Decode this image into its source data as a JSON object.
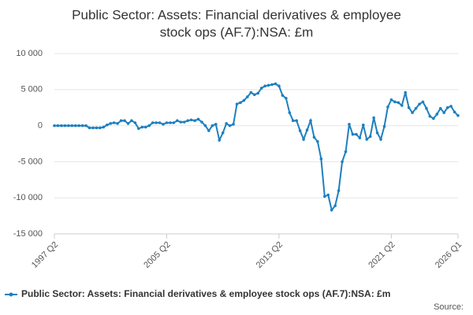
{
  "chart_data": {
    "type": "line",
    "title": [
      "Public Sector: Assets: Financial derivatives & employee",
      "stock ops (AF.7):NSA: £m"
    ],
    "categories": [
      "1997 Q2",
      null,
      null,
      null,
      null,
      null,
      null,
      null,
      null,
      null,
      null,
      null,
      null,
      null,
      null,
      null,
      null,
      null,
      null,
      null,
      null,
      null,
      null,
      null,
      null,
      null,
      null,
      null,
      null,
      null,
      null,
      null,
      "2005 Q2",
      null,
      null,
      null,
      null,
      null,
      null,
      null,
      null,
      null,
      null,
      null,
      null,
      null,
      null,
      null,
      null,
      null,
      null,
      null,
      null,
      null,
      null,
      null,
      null,
      null,
      null,
      null,
      null,
      null,
      null,
      null,
      "2013 Q2",
      null,
      null,
      null,
      null,
      null,
      null,
      null,
      null,
      null,
      null,
      null,
      null,
      null,
      null,
      null,
      null,
      null,
      null,
      null,
      null,
      null,
      null,
      null,
      null,
      null,
      null,
      null,
      null,
      null,
      null,
      null,
      "2021 Q2",
      null,
      null,
      null,
      null,
      null,
      null,
      null,
      null,
      null,
      null,
      null,
      null,
      null,
      null,
      null,
      null,
      null,
      null,
      "2026 Q1"
    ],
    "series": [
      {
        "name": "Public Sector: Assets: Financial derivatives & employee stock ops (AF.7):NSA: £m",
        "color": "#1f7fbf",
        "values": [
          0,
          0,
          0,
          0,
          0,
          0,
          0,
          0,
          0,
          0,
          -300,
          -300,
          -300,
          -300,
          -200,
          100,
          300,
          400,
          300,
          700,
          700,
          300,
          700,
          400,
          -400,
          -200,
          -200,
          0,
          400,
          400,
          400,
          200,
          400,
          400,
          400,
          700,
          500,
          500,
          700,
          800,
          700,
          900,
          500,
          0,
          -700,
          0,
          200,
          -2000,
          -1000,
          300,
          0,
          200,
          3000,
          3200,
          3500,
          4000,
          4600,
          4300,
          4500,
          5200,
          5500,
          5600,
          5700,
          5800,
          5500,
          4200,
          3800,
          1800,
          700,
          700,
          -700,
          -1900,
          -600,
          700,
          -1600,
          -2200,
          -4600,
          -9800,
          -9600,
          -11700,
          -11100,
          -9000,
          -5000,
          -3600,
          200,
          -1200,
          -1200,
          -1700,
          100,
          -1900,
          -1500,
          1100,
          -1000,
          -1900,
          -100,
          2600,
          3600,
          3300,
          3200,
          2800,
          4600,
          2500,
          1800,
          2400,
          3000,
          3300,
          2400,
          1300,
          1000,
          1600,
          2400,
          1800,
          2500,
          2700,
          1900,
          1400
        ]
      }
    ],
    "ylim": [
      -15000,
      10000
    ],
    "yticks": [
      {
        "value": -15000,
        "label": "-15 000"
      },
      {
        "value": -10000,
        "label": "-10 000"
      },
      {
        "value": -5000,
        "label": "-5 000"
      },
      0,
      {
        "value": 5000,
        "label": "5 000"
      },
      {
        "value": 10000,
        "label": "10 000"
      }
    ],
    "grid": true,
    "source": "Source:"
  }
}
